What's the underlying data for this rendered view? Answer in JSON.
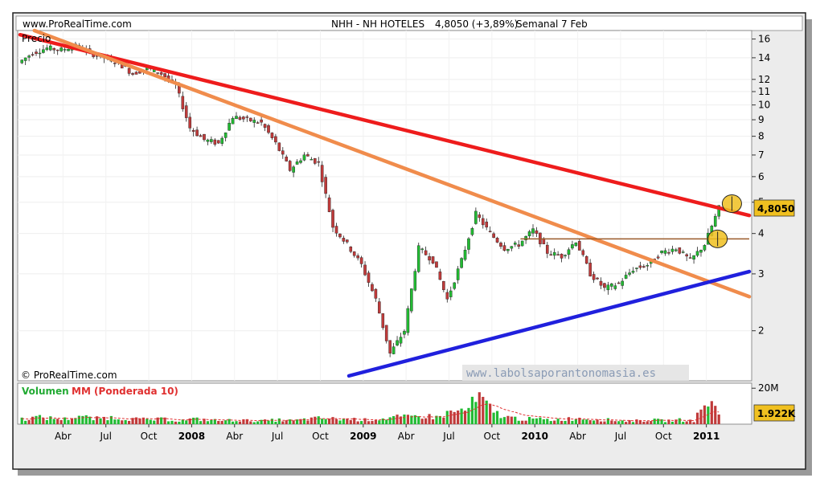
{
  "header": {
    "site": "www.ProRealTime.com",
    "symbol": "NHH - NH HOTELES",
    "quote": "4,8050 (+3,89%)",
    "period": "Semanal",
    "date": "7 Feb"
  },
  "price_panel": {
    "label": "Precio",
    "copyright": "© ProRealTime.com",
    "watermark": "www.labolsaporantonomasia.es",
    "last_label": "4,8050"
  },
  "volume_panel": {
    "label_part1": "Volumen",
    "label_part2": "MM (Ponderada 10)",
    "last_label": "1.922K"
  },
  "colors": {
    "up": "#22bb33",
    "down": "#c03a3a",
    "trend_red": "#ee1c1c",
    "trend_orange": "#f08c4c",
    "trend_blue": "#2020dd",
    "resistance": "#9a5a2a",
    "circle": "#f0c020",
    "volume_ma": "#e03030"
  },
  "chart_data": [
    {
      "type": "line",
      "name": "Precio",
      "log_scale": true,
      "y_ticks": [
        2,
        3,
        4,
        5,
        6,
        7,
        8,
        9,
        10,
        11,
        12,
        14,
        16
      ],
      "y_range": [
        1.4,
        17
      ],
      "x_labels": [
        "Abr",
        "Jul",
        "Oct",
        "2008",
        "Abr",
        "Jul",
        "Oct",
        "2009",
        "Abr",
        "Jul",
        "Oct",
        "2010",
        "Abr",
        "Jul",
        "Oct",
        "2011"
      ],
      "x_label_dates": [
        "2007-04",
        "2007-07",
        "2007-10",
        "2008-01",
        "2008-04",
        "2008-07",
        "2008-10",
        "2009-01",
        "2009-04",
        "2009-07",
        "2009-10",
        "2010-01",
        "2010-04",
        "2010-07",
        "2010-10",
        "2011-01"
      ],
      "x_range": [
        "2007-01",
        "2011-04"
      ],
      "series": [
        {
          "values": [
            {
              "x": "2007-01",
              "y": 13.5
            },
            {
              "x": "2007-02",
              "y": 14.5
            },
            {
              "x": "2007-03",
              "y": 15.0
            },
            {
              "x": "2007-04",
              "y": 14.8
            },
            {
              "x": "2007-05",
              "y": 15.3
            },
            {
              "x": "2007-06",
              "y": 14.5
            },
            {
              "x": "2007-07",
              "y": 14.0
            },
            {
              "x": "2007-08",
              "y": 13.5
            },
            {
              "x": "2007-09",
              "y": 12.5
            },
            {
              "x": "2007-10",
              "y": 13.0
            },
            {
              "x": "2007-11",
              "y": 12.5
            },
            {
              "x": "2007-12",
              "y": 11.5
            },
            {
              "x": "2008-01",
              "y": 8.5
            },
            {
              "x": "2008-02",
              "y": 7.8
            },
            {
              "x": "2008-03",
              "y": 7.6
            },
            {
              "x": "2008-04",
              "y": 9.2
            },
            {
              "x": "2008-05",
              "y": 9.0
            },
            {
              "x": "2008-06",
              "y": 8.8
            },
            {
              "x": "2008-07",
              "y": 7.6
            },
            {
              "x": "2008-08",
              "y": 6.3
            },
            {
              "x": "2008-09",
              "y": 7.0
            },
            {
              "x": "2008-10",
              "y": 6.6
            },
            {
              "x": "2008-11",
              "y": 4.2
            },
            {
              "x": "2008-12",
              "y": 3.7
            },
            {
              "x": "2009-01",
              "y": 3.2
            },
            {
              "x": "2009-02",
              "y": 2.5
            },
            {
              "x": "2009-03",
              "y": 1.7
            },
            {
              "x": "2009-04",
              "y": 2.0
            },
            {
              "x": "2009-05",
              "y": 3.6
            },
            {
              "x": "2009-06",
              "y": 3.3
            },
            {
              "x": "2009-07",
              "y": 2.5
            },
            {
              "x": "2009-08",
              "y": 3.3
            },
            {
              "x": "2009-09",
              "y": 4.6
            },
            {
              "x": "2009-10",
              "y": 4.0
            },
            {
              "x": "2009-11",
              "y": 3.6
            },
            {
              "x": "2009-12",
              "y": 3.7
            },
            {
              "x": "2010-01",
              "y": 4.1
            },
            {
              "x": "2010-02",
              "y": 3.5
            },
            {
              "x": "2010-03",
              "y": 3.4
            },
            {
              "x": "2010-04",
              "y": 3.8
            },
            {
              "x": "2010-05",
              "y": 3.0
            },
            {
              "x": "2010-06",
              "y": 2.7
            },
            {
              "x": "2010-07",
              "y": 2.8
            },
            {
              "x": "2010-08",
              "y": 3.1
            },
            {
              "x": "2010-09",
              "y": 3.2
            },
            {
              "x": "2010-10",
              "y": 3.5
            },
            {
              "x": "2010-11",
              "y": 3.6
            },
            {
              "x": "2010-12",
              "y": 3.3
            },
            {
              "x": "2011-01",
              "y": 3.7
            },
            {
              "x": "2011-02",
              "y": 4.8
            }
          ]
        }
      ],
      "annotations": [
        {
          "kind": "trendline",
          "color": "trend_red",
          "from": {
            "x": "2007-01",
            "y": 16.5
          },
          "to": {
            "x": "2011-04",
            "y": 4.55
          }
        },
        {
          "kind": "trendline",
          "color": "trend_orange",
          "from": {
            "x": "2007-02",
            "y": 17.0
          },
          "to": {
            "x": "2011-04",
            "y": 2.55
          }
        },
        {
          "kind": "trendline",
          "color": "trend_blue",
          "from": {
            "x": "2008-12",
            "y": 1.45
          },
          "to": {
            "x": "2011-04",
            "y": 3.05
          }
        },
        {
          "kind": "horizontal",
          "color": "resistance",
          "y": 3.85,
          "from": "2009-12",
          "to": "2011-04"
        },
        {
          "kind": "circle",
          "color": "circle",
          "x": "2011-02",
          "y": 4.95
        },
        {
          "kind": "circle",
          "color": "circle",
          "x": "2011-01",
          "y": 3.85
        }
      ]
    },
    {
      "type": "bar",
      "name": "Volumen",
      "y_ticks_label": "20M",
      "y_range": [
        0,
        21
      ],
      "unit": "M",
      "series": [
        {
          "values": [
            {
              "x": "2007-01",
              "y": 3
            },
            {
              "x": "2007-02",
              "y": 4
            },
            {
              "x": "2007-03",
              "y": 3.5
            },
            {
              "x": "2007-04",
              "y": 3
            },
            {
              "x": "2007-05",
              "y": 5
            },
            {
              "x": "2007-06",
              "y": 3
            },
            {
              "x": "2007-07",
              "y": 4
            },
            {
              "x": "2007-08",
              "y": 3.5
            },
            {
              "x": "2007-09",
              "y": 3
            },
            {
              "x": "2007-10",
              "y": 2.5
            },
            {
              "x": "2007-11",
              "y": 3
            },
            {
              "x": "2007-12",
              "y": 2
            },
            {
              "x": "2008-01",
              "y": 3
            },
            {
              "x": "2008-02",
              "y": 2.5
            },
            {
              "x": "2008-03",
              "y": 2
            },
            {
              "x": "2008-04",
              "y": 2.5
            },
            {
              "x": "2008-05",
              "y": 2
            },
            {
              "x": "2008-06",
              "y": 2
            },
            {
              "x": "2008-07",
              "y": 2.5
            },
            {
              "x": "2008-08",
              "y": 2
            },
            {
              "x": "2008-09",
              "y": 3
            },
            {
              "x": "2008-10",
              "y": 3.5
            },
            {
              "x": "2008-11",
              "y": 3
            },
            {
              "x": "2008-12",
              "y": 3
            },
            {
              "x": "2009-01",
              "y": 2.5
            },
            {
              "x": "2009-02",
              "y": 3
            },
            {
              "x": "2009-03",
              "y": 4
            },
            {
              "x": "2009-04",
              "y": 4
            },
            {
              "x": "2009-05",
              "y": 5
            },
            {
              "x": "2009-06",
              "y": 4
            },
            {
              "x": "2009-07",
              "y": 7
            },
            {
              "x": "2009-08",
              "y": 8
            },
            {
              "x": "2009-09",
              "y": 15
            },
            {
              "x": "2009-10",
              "y": 7
            },
            {
              "x": "2009-11",
              "y": 4
            },
            {
              "x": "2009-12",
              "y": 3
            },
            {
              "x": "2010-01",
              "y": 3
            },
            {
              "x": "2010-02",
              "y": 2.5
            },
            {
              "x": "2010-03",
              "y": 3
            },
            {
              "x": "2010-04",
              "y": 3.5
            },
            {
              "x": "2010-05",
              "y": 3
            },
            {
              "x": "2010-06",
              "y": 2.5
            },
            {
              "x": "2010-07",
              "y": 2
            },
            {
              "x": "2010-08",
              "y": 2
            },
            {
              "x": "2010-09",
              "y": 2.5
            },
            {
              "x": "2010-10",
              "y": 2
            },
            {
              "x": "2010-11",
              "y": 2.5
            },
            {
              "x": "2010-12",
              "y": 2
            },
            {
              "x": "2011-01",
              "y": 14
            },
            {
              "x": "2011-02",
              "y": 4
            }
          ]
        }
      ]
    }
  ]
}
